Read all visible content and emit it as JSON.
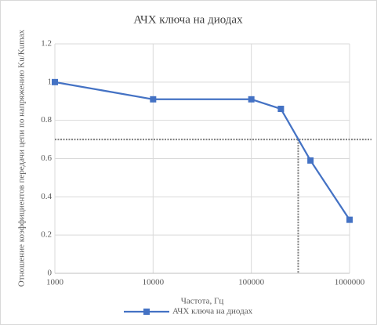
{
  "chart_data": {
    "type": "line",
    "title": "АЧХ ключа на диодах",
    "x_label": "Частота, Гц",
    "y_label": "Отношение коэффициентов передачи цепи по напряжению Ku/Kumax",
    "x": [
      1000,
      10000,
      100000,
      200000,
      400000,
      1000000
    ],
    "series": [
      {
        "name": "АЧХ ключа на диодах",
        "color": "#4472c4",
        "values": [
          1,
          0.91,
          0.91,
          0.86,
          0.59,
          0.28
        ]
      }
    ],
    "xlim": [
      1000,
      1000000
    ],
    "xticks": [
      1000,
      10000,
      100000,
      1000000
    ],
    "xscale": "log",
    "ylim": [
      0,
      1.2
    ],
    "yticks": [
      0,
      0.2,
      0.4,
      0.6,
      0.8,
      1,
      1.2
    ],
    "grid": true,
    "legend": "bottom",
    "reference_y": 0.7,
    "reference_x": 300000
  }
}
